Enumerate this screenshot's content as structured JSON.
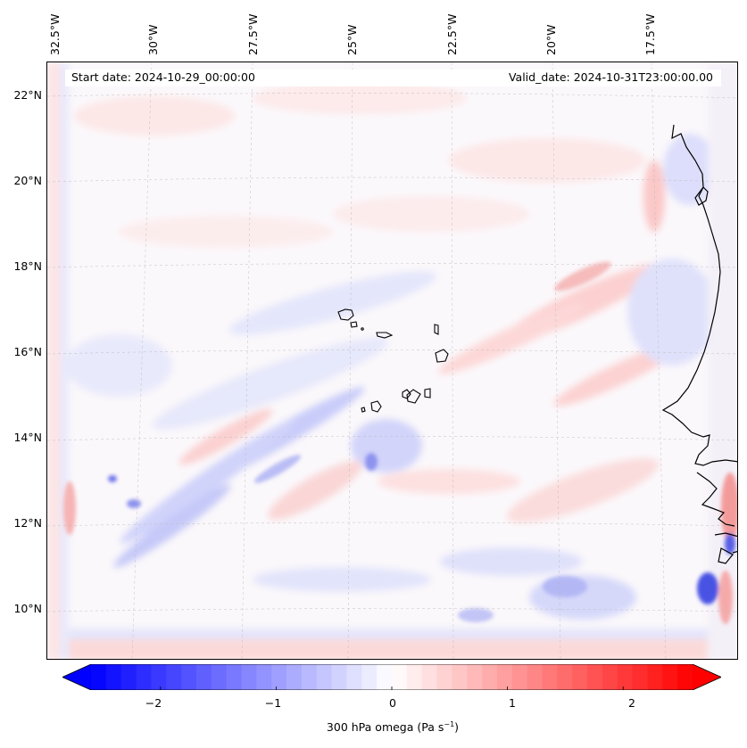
{
  "map": {
    "start_date_text": "Start date: 2024-10-29_00:00:00",
    "valid_date_text": "Valid_date: 2024-10-31T23:00:00.00",
    "lon_labels": [
      "32.5°W",
      "30°W",
      "27.5°W",
      "25°W",
      "22.5°W",
      "20°W",
      "17.5°W"
    ],
    "lat_labels": [
      "22°N",
      "20°N",
      "18°N",
      "16°N",
      "14°N",
      "12°N",
      "10°N"
    ],
    "variable": "300 hPa omega",
    "units": "Pa s⁻¹",
    "region": "Cabo Verde / West African coast",
    "colormap": {
      "negative": "#0000ff",
      "zero": "#ffffff",
      "positive": "#ff0000"
    }
  },
  "colorbar": {
    "label_prefix": "300 hPa omega (Pa s",
    "label_exp": "−1",
    "label_suffix": ")",
    "min": -2.6,
    "max": 2.6,
    "ticks": [
      "−2",
      "−1",
      "0",
      "1",
      "2"
    ],
    "tick_values": [
      -2,
      -1,
      0,
      1,
      2
    ],
    "levels": 40
  }
}
